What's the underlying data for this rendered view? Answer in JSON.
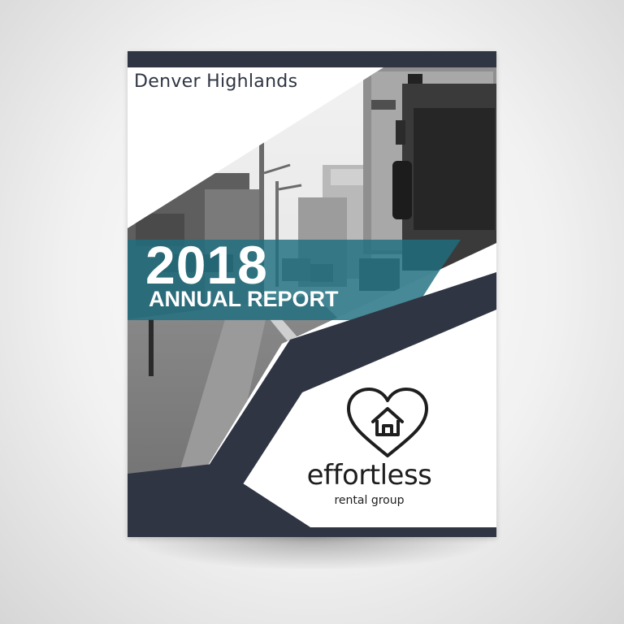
{
  "cover": {
    "subtitle": "Denver Highlands",
    "year": "2018",
    "title": "ANNUAL REPORT"
  },
  "brand": {
    "name": "effortless",
    "tagline": "rental group",
    "icon": "heart-house-icon"
  },
  "photo": {
    "subject": "street-photo"
  },
  "colors": {
    "navy": "#2f3543",
    "teal": "#1f6f80",
    "white": "#ffffff"
  }
}
